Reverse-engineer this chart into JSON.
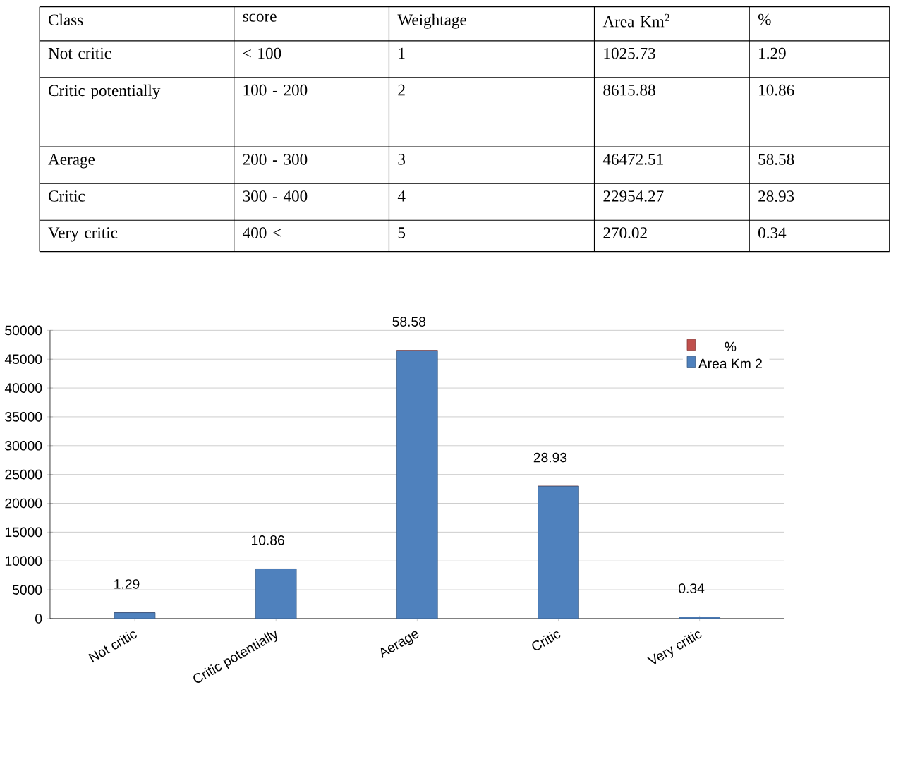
{
  "chart_data": {
    "type": "bar",
    "stacked": true,
    "categories": [
      "Not critic",
      "Critic potentially",
      "Aerage",
      "Critic",
      "Very critic"
    ],
    "series": [
      {
        "name": "Area Km 2",
        "color": "#4f81bd",
        "values": [
          1025.73,
          8615.88,
          46472.51,
          22954.27,
          270.02
        ]
      },
      {
        "name": "%",
        "color": "#c0504d",
        "values": [
          1.29,
          10.86,
          58.58,
          28.93,
          0.34
        ],
        "value_labels": [
          "1.29",
          "10.86",
          "58.58",
          "28.93",
          "0.34"
        ]
      }
    ],
    "ylim": [
      0,
      50000
    ],
    "yticks": [
      0,
      5000,
      10000,
      15000,
      20000,
      25000,
      30000,
      35000,
      40000,
      45000,
      50000
    ],
    "grid": "y",
    "legend": "top right",
    "annotations": [
      "Class",
      "score",
      "Weightage",
      "Area Km$^{2}$",
      "%",
      "Not critic",
      "< 100",
      "1",
      "1025.73",
      "1.29",
      "Critic potentially",
      "100 - 200",
      "2",
      "8615.88",
      "10.86",
      "Aerage",
      "200 - 300",
      "3",
      "46472.51",
      "58.58",
      "Critic",
      "300 - 400",
      "4",
      "22954.27",
      "28.93",
      "Very critic",
      "400 <",
      "5",
      "270.02",
      "0.34"
    ]
  }
}
